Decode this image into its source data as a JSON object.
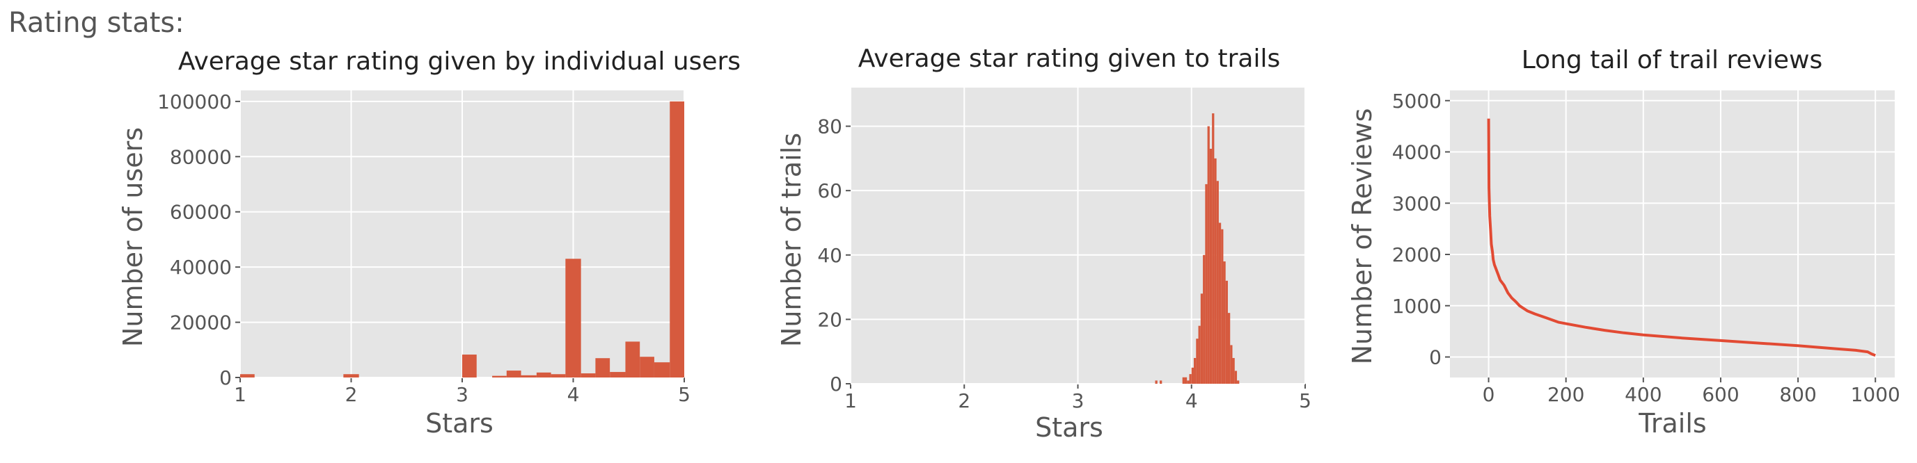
{
  "page": {
    "heading": "Rating stats:"
  },
  "colors": {
    "bar": "#d65a3e",
    "line": "#e24a33",
    "panel": "#e5e5e5",
    "grid": "#ffffff",
    "text": "#555555"
  },
  "chart_data": [
    {
      "type": "bar",
      "title": "Average star rating given by individual users",
      "xlabel": "Stars",
      "ylabel": "Number of users",
      "xlim": [
        1,
        5
      ],
      "ylim": [
        0,
        104000
      ],
      "xticks": [
        "1",
        "2",
        "3",
        "4",
        "5"
      ],
      "yticks": [
        "0",
        "20000",
        "40000",
        "60000",
        "80000",
        "100000"
      ],
      "grid": true,
      "bins": [
        {
          "x0": 1.0,
          "x1": 1.13,
          "value": 1200
        },
        {
          "x0": 1.93,
          "x1": 2.07,
          "value": 1200
        },
        {
          "x0": 3.0,
          "x1": 3.13,
          "value": 8300
        },
        {
          "x0": 3.27,
          "x1": 3.4,
          "value": 600
        },
        {
          "x0": 3.4,
          "x1": 3.53,
          "value": 2500
        },
        {
          "x0": 3.53,
          "x1": 3.67,
          "value": 800
        },
        {
          "x0": 3.67,
          "x1": 3.8,
          "value": 1800
        },
        {
          "x0": 3.8,
          "x1": 3.93,
          "value": 1200
        },
        {
          "x0": 3.93,
          "x1": 4.07,
          "value": 43000
        },
        {
          "x0": 4.07,
          "x1": 4.2,
          "value": 1500
        },
        {
          "x0": 4.2,
          "x1": 4.33,
          "value": 7000
        },
        {
          "x0": 4.33,
          "x1": 4.47,
          "value": 2000
        },
        {
          "x0": 4.47,
          "x1": 4.6,
          "value": 13000
        },
        {
          "x0": 4.6,
          "x1": 4.73,
          "value": 7500
        },
        {
          "x0": 4.73,
          "x1": 4.87,
          "value": 5500
        },
        {
          "x0": 4.87,
          "x1": 5.0,
          "value": 100000
        }
      ]
    },
    {
      "type": "bar",
      "title": "Average star rating given to trails",
      "xlabel": "Stars",
      "ylabel": "Number of trails",
      "xlim": [
        1,
        5
      ],
      "ylim": [
        0,
        92
      ],
      "xticks": [
        "1",
        "2",
        "3",
        "4",
        "5"
      ],
      "yticks": [
        "0",
        "20",
        "40",
        "60",
        "80"
      ],
      "grid": true,
      "bin_start": 3.6,
      "bin_width": 0.02,
      "values": [
        0,
        0,
        0,
        0,
        1,
        0,
        1,
        0,
        0,
        0,
        0,
        0,
        0,
        0,
        0,
        0,
        2,
        2,
        1,
        3,
        5,
        8,
        14,
        18,
        28,
        40,
        62,
        80,
        73,
        84,
        70,
        63,
        50,
        48,
        38,
        32,
        22,
        12,
        8,
        4,
        1
      ]
    },
    {
      "type": "line",
      "title": "Long tail of trail reviews",
      "xlabel": "Trails",
      "ylabel": "Number of Reviews",
      "xlim": [
        -100,
        1050
      ],
      "ylim": [
        -400,
        5200
      ],
      "xticks": [
        "0",
        "200",
        "400",
        "600",
        "800",
        "1000"
      ],
      "yticks": [
        "0",
        "1000",
        "2000",
        "3000",
        "4000",
        "5000"
      ],
      "grid": true,
      "x": [
        0,
        1,
        2,
        3,
        5,
        7,
        10,
        12,
        15,
        20,
        25,
        30,
        40,
        50,
        60,
        70,
        80,
        100,
        120,
        150,
        180,
        200,
        250,
        300,
        350,
        400,
        500,
        600,
        700,
        800,
        850,
        900,
        950,
        980,
        990,
        1000
      ],
      "y": [
        4650,
        3300,
        3000,
        2750,
        2500,
        2200,
        2050,
        1900,
        1800,
        1700,
        1600,
        1500,
        1400,
        1250,
        1150,
        1080,
        1000,
        900,
        840,
        760,
        680,
        650,
        580,
        520,
        470,
        430,
        370,
        320,
        270,
        220,
        190,
        160,
        130,
        100,
        60,
        30
      ]
    }
  ]
}
